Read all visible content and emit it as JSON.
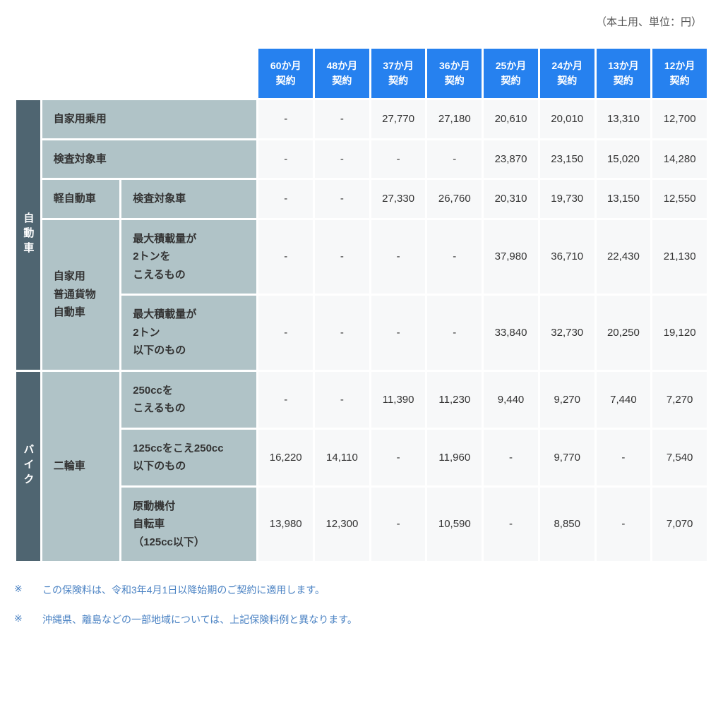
{
  "unit_note": "（本土用、単位：円）",
  "periods": [
    {
      "top": "60か月",
      "bottom": "契約"
    },
    {
      "top": "48か月",
      "bottom": "契約"
    },
    {
      "top": "37か月",
      "bottom": "契約"
    },
    {
      "top": "36か月",
      "bottom": "契約"
    },
    {
      "top": "25か月",
      "bottom": "契約"
    },
    {
      "top": "24か月",
      "bottom": "契約"
    },
    {
      "top": "13か月",
      "bottom": "契約"
    },
    {
      "top": "12か月",
      "bottom": "契約"
    }
  ],
  "groups": [
    {
      "category": "自動車",
      "rows": [
        {
          "sub1": "自家用乗用",
          "sub1_colspan": 2,
          "sub2": null,
          "values": [
            "-",
            "-",
            "27,770",
            "27,180",
            "20,610",
            "20,010",
            "13,310",
            "12,700"
          ]
        },
        {
          "sub1": "検査対象車",
          "sub1_colspan": 2,
          "sub2": null,
          "values": [
            "-",
            "-",
            "-",
            "-",
            "23,870",
            "23,150",
            "15,020",
            "14,280"
          ]
        },
        {
          "sub1": "軽自動車",
          "sub1_colspan": 1,
          "sub1_rowspan": 1,
          "sub2": "検査対象車",
          "values": [
            "-",
            "-",
            "27,330",
            "26,760",
            "20,310",
            "19,730",
            "13,150",
            "12,550"
          ]
        },
        {
          "sub1": "自家用\n普通貨物\n自動車",
          "sub1_colspan": 1,
          "sub1_rowspan": 2,
          "sub2": "最大積載量が\n2トンを\nこえるもの",
          "values": [
            "-",
            "-",
            "-",
            "-",
            "37,980",
            "36,710",
            "22,430",
            "21,130"
          ]
        },
        {
          "sub1": null,
          "sub2": "最大積載量が\n2トン\n以下のもの",
          "values": [
            "-",
            "-",
            "-",
            "-",
            "33,840",
            "32,730",
            "20,250",
            "19,120"
          ]
        }
      ]
    },
    {
      "category": "バイク",
      "rows": [
        {
          "sub1": "二輪車",
          "sub1_colspan": 1,
          "sub1_rowspan": 3,
          "sub2": "250ccを\nこえるもの",
          "values": [
            "-",
            "-",
            "11,390",
            "11,230",
            "9,440",
            "9,270",
            "7,440",
            "7,270"
          ]
        },
        {
          "sub1": null,
          "sub2": "125ccをこえ250cc\n以下のもの",
          "values": [
            "16,220",
            "14,110",
            "-",
            "11,960",
            "-",
            "9,770",
            "-",
            "7,540"
          ]
        },
        {
          "sub1": null,
          "sub2": "原動機付\n自転車\n（125cc以下）",
          "values": [
            "13,980",
            "12,300",
            "-",
            "10,590",
            "-",
            "8,850",
            "-",
            "7,070"
          ]
        }
      ]
    }
  ],
  "notes": [
    "この保険料は、令和3年4月1日以降始期のご契約に適用します。",
    "沖縄県、離島などの一部地域については、上記保険料例と異なります。"
  ],
  "note_mark": "※",
  "colors": {
    "header_bg": "#2681ef",
    "cat_bg": "#4f6571",
    "sub_bg": "#b0c3c7",
    "value_bg": "#f7f8f9",
    "note_color": "#4a82c3"
  },
  "col_widths": {
    "cat": 36,
    "sub1": 110,
    "sub2": 190,
    "period": 78
  }
}
